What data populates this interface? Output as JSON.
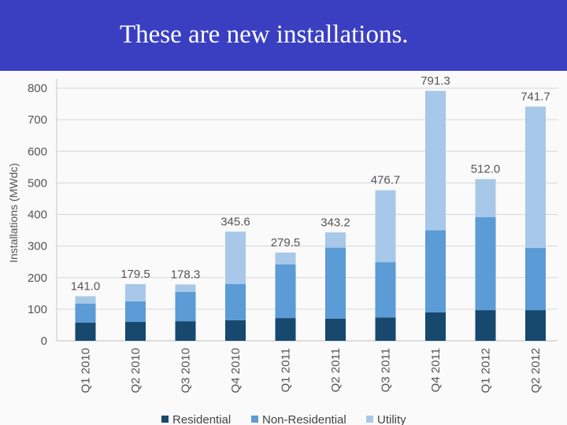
{
  "title": "These are new installations.",
  "chart_data": {
    "type": "bar",
    "stacked": true,
    "ylabel": "Installations (MWdc)",
    "ylim": [
      0,
      800
    ],
    "yticks": [
      0,
      100,
      200,
      300,
      400,
      500,
      600,
      700,
      800
    ],
    "categories": [
      "Q1 2010",
      "Q2 2010",
      "Q3 2010",
      "Q4 2010",
      "Q1 2011",
      "Q2 2011",
      "Q3 2011",
      "Q4 2011",
      "Q1 2012",
      "Q2 2012"
    ],
    "series": [
      {
        "name": "Residential",
        "color": "#17486e",
        "values": [
          58,
          60,
          62,
          65,
          72,
          70,
          74,
          90,
          97,
          97
        ]
      },
      {
        "name": "Non-Residential",
        "color": "#5b9bd6",
        "values": [
          60,
          65,
          93,
          115,
          170,
          225,
          175,
          260,
          295,
          197
        ]
      },
      {
        "name": "Utility",
        "color": "#a7c8e9",
        "values": [
          23,
          54.5,
          23.3,
          165.6,
          37.5,
          48.2,
          227.7,
          441.3,
          120,
          447.7
        ]
      }
    ],
    "totals": [
      "141.0",
      "179.5",
      "178.3",
      "345.6",
      "279.5",
      "343.2",
      "476.7",
      "791.3",
      "512.0",
      "741.7"
    ],
    "grid": true,
    "legend_position": "bottom"
  }
}
